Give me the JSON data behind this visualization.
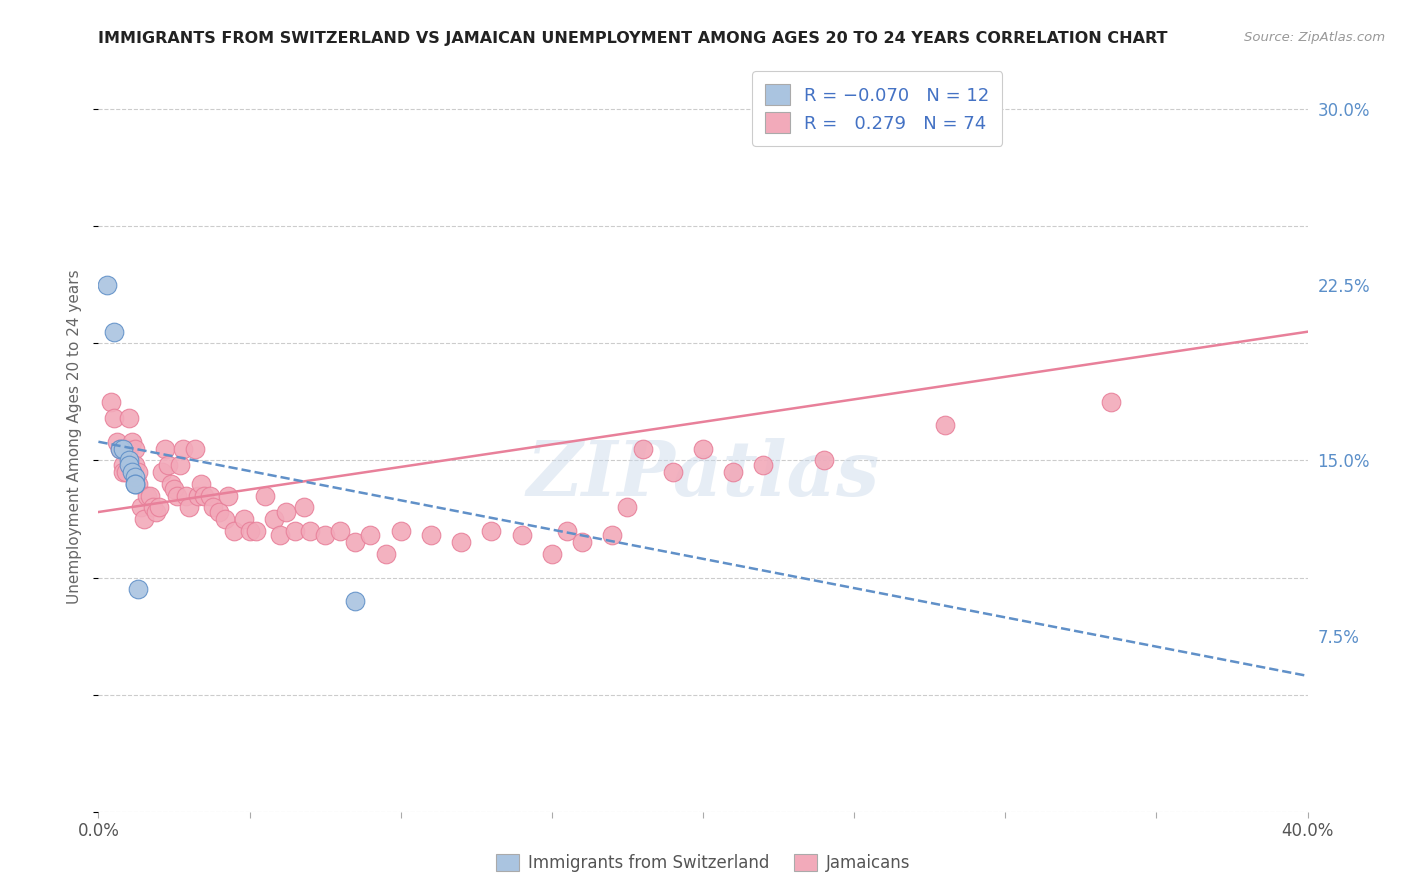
{
  "title": "IMMIGRANTS FROM SWITZERLAND VS JAMAICAN UNEMPLOYMENT AMONG AGES 20 TO 24 YEARS CORRELATION CHART",
  "source": "Source: ZipAtlas.com",
  "ylabel": "Unemployment Among Ages 20 to 24 years",
  "x_min": 0.0,
  "x_max": 0.4,
  "y_min": 0.0,
  "y_max": 0.32,
  "x_ticks": [
    0.0,
    0.05,
    0.1,
    0.15,
    0.2,
    0.25,
    0.3,
    0.35,
    0.4
  ],
  "x_tick_labels": [
    "0.0%",
    "",
    "",
    "",
    "",
    "",
    "",
    "",
    "40.0%"
  ],
  "y_ticks": [
    0.0,
    0.075,
    0.15,
    0.225,
    0.3
  ],
  "y_tick_labels_right": [
    "",
    "7.5%",
    "15.0%",
    "22.5%",
    "30.0%"
  ],
  "color_swiss": "#aac4e0",
  "color_jamaican": "#f2aaba",
  "color_swiss_line": "#6090c8",
  "color_jamaican_line": "#e8809a",
  "background_color": "#ffffff",
  "watermark": "ZIPatlas",
  "swiss_points_x": [
    0.003,
    0.005,
    0.007,
    0.008,
    0.01,
    0.01,
    0.011,
    0.012,
    0.012,
    0.012,
    0.013,
    0.085
  ],
  "swiss_points_y": [
    0.225,
    0.205,
    0.155,
    0.155,
    0.15,
    0.148,
    0.145,
    0.143,
    0.14,
    0.14,
    0.095,
    0.09
  ],
  "swiss_line_x0": 0.0,
  "swiss_line_y0": 0.158,
  "swiss_line_x1": 0.4,
  "swiss_line_y1": 0.058,
  "jamaican_line_x0": 0.0,
  "jamaican_line_y0": 0.128,
  "jamaican_line_x1": 0.4,
  "jamaican_line_y1": 0.205,
  "jamaican_points_x": [
    0.004,
    0.005,
    0.006,
    0.007,
    0.008,
    0.008,
    0.009,
    0.01,
    0.01,
    0.011,
    0.012,
    0.012,
    0.013,
    0.013,
    0.014,
    0.015,
    0.016,
    0.017,
    0.018,
    0.019,
    0.02,
    0.021,
    0.022,
    0.023,
    0.024,
    0.025,
    0.026,
    0.027,
    0.028,
    0.029,
    0.03,
    0.032,
    0.033,
    0.034,
    0.035,
    0.037,
    0.038,
    0.04,
    0.042,
    0.043,
    0.045,
    0.048,
    0.05,
    0.052,
    0.055,
    0.058,
    0.06,
    0.062,
    0.065,
    0.068,
    0.07,
    0.075,
    0.08,
    0.085,
    0.09,
    0.095,
    0.1,
    0.11,
    0.12,
    0.13,
    0.14,
    0.15,
    0.155,
    0.16,
    0.17,
    0.175,
    0.18,
    0.19,
    0.2,
    0.21,
    0.22,
    0.24,
    0.28,
    0.335
  ],
  "jamaican_points_y": [
    0.175,
    0.168,
    0.158,
    0.155,
    0.148,
    0.145,
    0.145,
    0.168,
    0.155,
    0.158,
    0.155,
    0.148,
    0.145,
    0.14,
    0.13,
    0.125,
    0.135,
    0.135,
    0.13,
    0.128,
    0.13,
    0.145,
    0.155,
    0.148,
    0.14,
    0.138,
    0.135,
    0.148,
    0.155,
    0.135,
    0.13,
    0.155,
    0.135,
    0.14,
    0.135,
    0.135,
    0.13,
    0.128,
    0.125,
    0.135,
    0.12,
    0.125,
    0.12,
    0.12,
    0.135,
    0.125,
    0.118,
    0.128,
    0.12,
    0.13,
    0.12,
    0.118,
    0.12,
    0.115,
    0.118,
    0.11,
    0.12,
    0.118,
    0.115,
    0.12,
    0.118,
    0.11,
    0.12,
    0.115,
    0.118,
    0.13,
    0.155,
    0.145,
    0.155,
    0.145,
    0.148,
    0.15,
    0.165,
    0.175
  ]
}
